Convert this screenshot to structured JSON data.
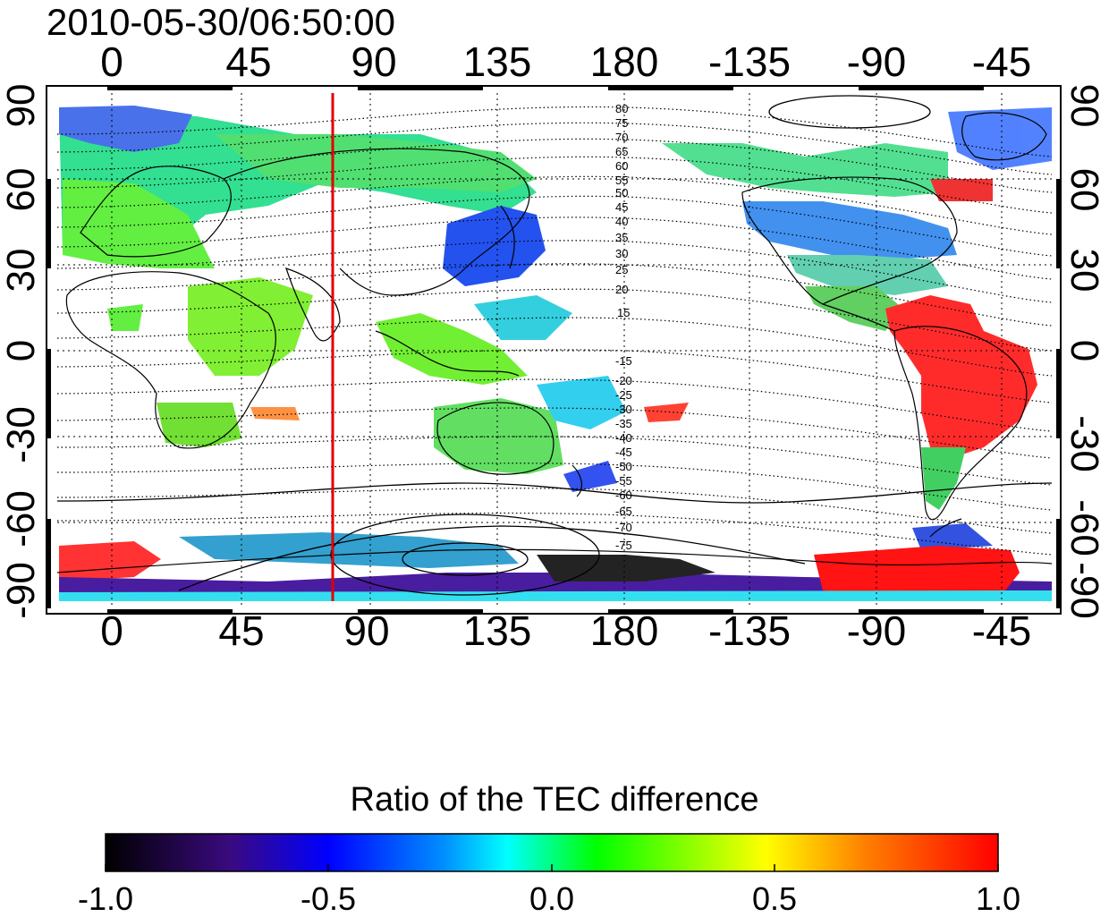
{
  "timestamp": "2010-05-30/06:50:00",
  "longitude_ticks": [
    "0",
    "45",
    "90",
    "135",
    "180",
    "-135",
    "-90",
    "-45"
  ],
  "latitude_ticks": [
    "90",
    "60",
    "30",
    "0",
    "-30",
    "-60",
    "-90"
  ],
  "contour_labels_north": [
    "80",
    "75",
    "70",
    "65",
    "60",
    "55",
    "50",
    "45",
    "40",
    "35",
    "30",
    "25",
    "20",
    "15"
  ],
  "contour_labels_south": [
    "-15",
    "-20",
    "-25",
    "-30",
    "-35",
    "-40",
    "-45",
    "-50",
    "-55",
    "-60",
    "-65",
    "-70",
    "-75"
  ],
  "colorbar": {
    "title": "Ratio of the TEC difference",
    "ticks": [
      "-1.0",
      "-0.5",
      "0.0",
      "0.5",
      "1.0"
    ],
    "min": -1.0,
    "max": 1.0,
    "colors": [
      "#000000",
      "#3a0a80",
      "#0000ff",
      "#00ffff",
      "#00ff00",
      "#ffff00",
      "#ff8000",
      "#ff0000"
    ]
  },
  "marker_meridian_longitude": 80,
  "colors": {
    "marker_line": "#e00000",
    "frame": "#000000",
    "grid": "#000000",
    "coast": "#000000"
  }
}
